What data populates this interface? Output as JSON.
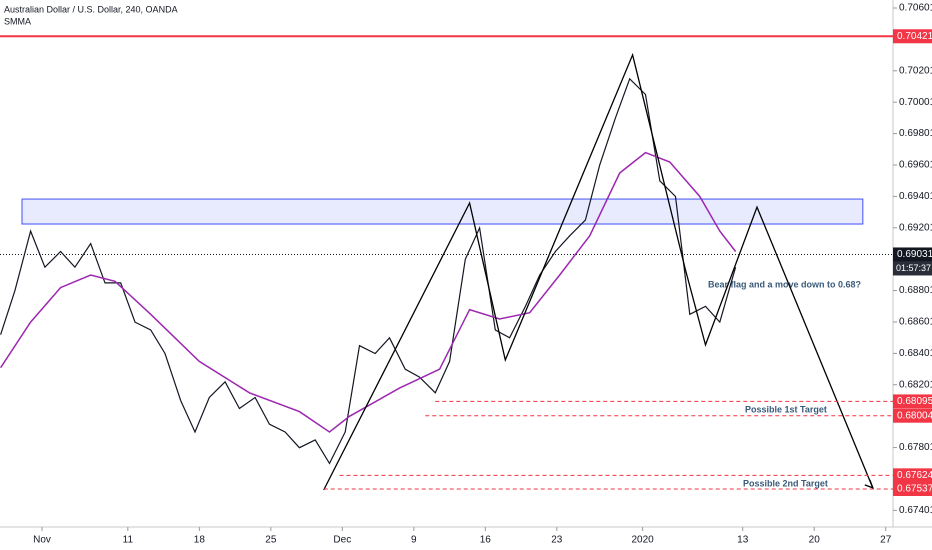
{
  "chart_data": {
    "type": "line",
    "title": "Australian Dollar / U.S. Dollar, 240, OANDA",
    "xlim": [
      -2.94,
      59.51
    ],
    "ylim": [
      0.67295,
      0.70652
    ],
    "xticks": [
      {
        "value": 0,
        "label": "Nov"
      },
      {
        "value": 6,
        "label": "11"
      },
      {
        "value": 11,
        "label": "18"
      },
      {
        "value": 16,
        "label": "25"
      },
      {
        "value": 21,
        "label": "Dec"
      },
      {
        "value": 26,
        "label": "9"
      },
      {
        "value": 31,
        "label": "16"
      },
      {
        "value": 36,
        "label": "23"
      },
      {
        "value": 42,
        "label": "2020"
      },
      {
        "value": 49,
        "label": "13"
      },
      {
        "value": 54,
        "label": "20"
      },
      {
        "value": 59,
        "label": "27"
      }
    ],
    "yticks": [
      0.70601,
      0.70201,
      0.70001,
      0.69801,
      0.69601,
      0.69401,
      0.69201,
      0.68801,
      0.68601,
      0.68401,
      0.68201,
      0.67801,
      0.67401
    ],
    "series": [
      {
        "color": "#131722",
        "x": [
          -2.9,
          -1.9,
          -0.8,
          0.2,
          1.3,
          2.3,
          3.4,
          4.4,
          5.5,
          6.5,
          7.6,
          8.6,
          9.7,
          10.7,
          11.7,
          12.8,
          13.8,
          14.9,
          15.9,
          17.0,
          18.0,
          19.1,
          20.1,
          21.2,
          22.2,
          23.3,
          24.3,
          25.4,
          26.4,
          27.5,
          28.5,
          29.6,
          30.6,
          31.7,
          32.7,
          33.8,
          34.8,
          35.9,
          36.9,
          38.0,
          39.0,
          40.1,
          41.1,
          42.2,
          43.2,
          44.3,
          45.3,
          46.4,
          47.4,
          48.5
        ],
        "values": [
          0.6852,
          0.688,
          0.6918,
          0.6895,
          0.6905,
          0.6895,
          0.691,
          0.6885,
          0.6885,
          0.686,
          0.6855,
          0.684,
          0.681,
          0.679,
          0.6812,
          0.6822,
          0.6805,
          0.6812,
          0.6795,
          0.679,
          0.678,
          0.6785,
          0.677,
          0.679,
          0.6845,
          0.684,
          0.685,
          0.683,
          0.6825,
          0.6815,
          0.6835,
          0.69,
          0.692,
          0.6855,
          0.685,
          0.687,
          0.689,
          0.6905,
          0.6915,
          0.6925,
          0.696,
          0.699,
          0.7015,
          0.7005,
          0.695,
          0.694,
          0.6865,
          0.687,
          0.686,
          0.6895
        ]
      },
      {
        "name": "SMMA",
        "color": "#9c27b0",
        "x": [
          -2.9,
          -0.8,
          1.3,
          3.4,
          5.1,
          7.6,
          11.0,
          14.5,
          18.0,
          20.1,
          21.5,
          25.0,
          27.8,
          29.9,
          32.0,
          34.1,
          36.2,
          38.3,
          40.4,
          42.2,
          43.9,
          46.0,
          47.4,
          48.5
        ],
        "values": [
          0.6831,
          0.686,
          0.6882,
          0.689,
          0.6886,
          0.6865,
          0.6835,
          0.6815,
          0.6803,
          0.679,
          0.68,
          0.6818,
          0.683,
          0.6868,
          0.6862,
          0.6866,
          0.689,
          0.6915,
          0.6955,
          0.6968,
          0.6962,
          0.694,
          0.6918,
          0.6905
        ]
      }
    ],
    "zone": {
      "x0": -1.4,
      "x1": 57.4,
      "top": 0.69384,
      "bottom": 0.69225,
      "color": "#3f51f5"
    },
    "drawing": {
      "color": "#000000",
      "x": [
        19.7,
        29.9,
        32.4,
        41.3,
        45.0,
        46.4,
        50.0,
        58.1
      ],
      "values": [
        0.67531,
        0.69359,
        0.68359,
        0.70302,
        0.68932,
        0.68455,
        0.69333,
        0.67544
      ]
    },
    "levels": [
      {
        "value": 0.70421,
        "x_start": -2.94,
        "style": "solid",
        "color": "#f23645"
      },
      {
        "value": 0.68095,
        "x_start": 27.5,
        "style": "dashed",
        "color": "#f23645"
      },
      {
        "value": 0.68004,
        "x_start": 26.8,
        "style": "dashed",
        "color": "#f23645"
      },
      {
        "value": 0.67624,
        "x_start": 20.8,
        "style": "dashed",
        "color": "#f23645"
      },
      {
        "value": 0.67537,
        "x_start": 19.7,
        "style": "dashed",
        "color": "#f23645"
      }
    ],
    "last_price": 0.69031,
    "countdown": "01:57:37",
    "annotations": [
      "Bear flag and a move down to 0.68?",
      "Possible 1st Target",
      "Possible 2nd Target"
    ]
  }
}
